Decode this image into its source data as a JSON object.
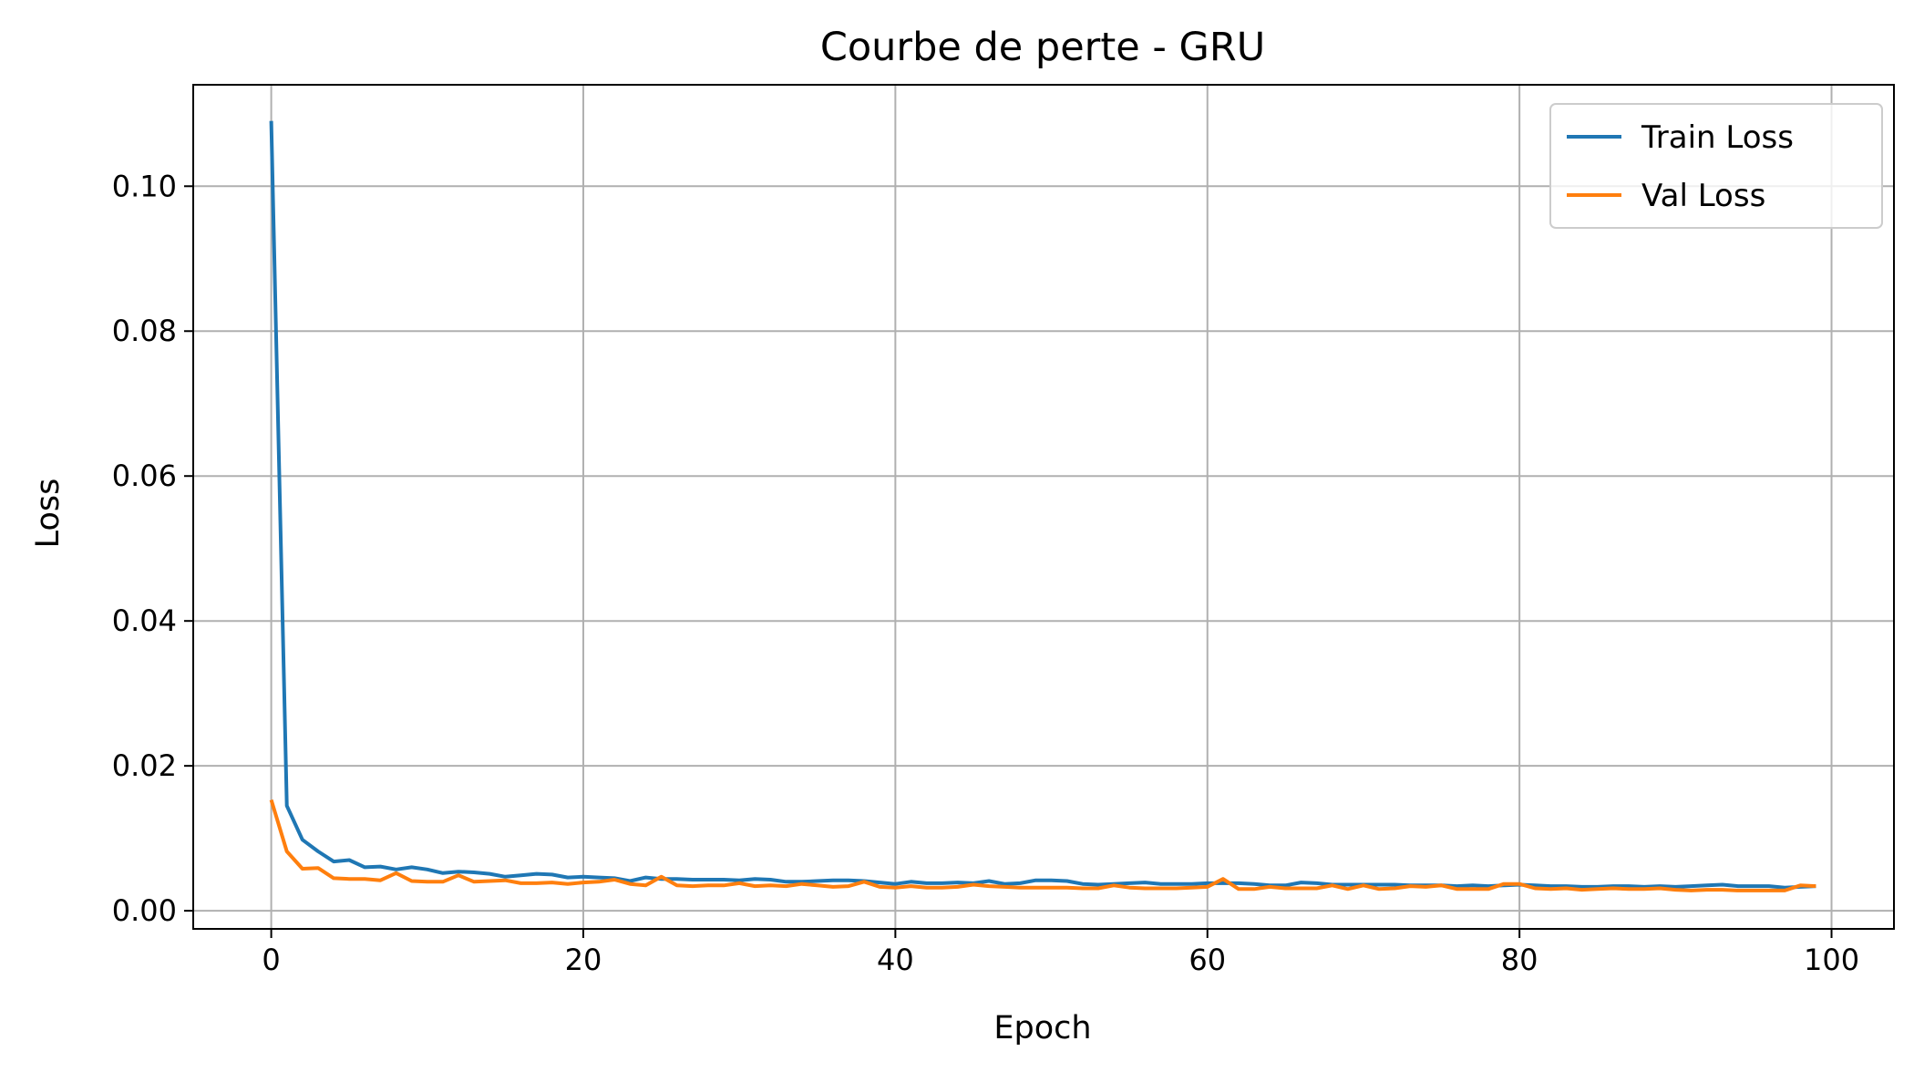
{
  "chart_data": {
    "type": "line",
    "title": "Courbe de perte - GRU",
    "xlabel": "Epoch",
    "ylabel": "Loss",
    "xlim": [
      -5,
      104
    ],
    "ylim": [
      -0.0025,
      0.114
    ],
    "xticks": [
      0,
      20,
      40,
      60,
      80,
      100
    ],
    "yticks": [
      0.0,
      0.02,
      0.04,
      0.06,
      0.08,
      0.1
    ],
    "xtick_labels": [
      "0",
      "20",
      "40",
      "60",
      "80",
      "100"
    ],
    "ytick_labels": [
      "0.00",
      "0.02",
      "0.04",
      "0.06",
      "0.08",
      "0.10"
    ],
    "grid": true,
    "legend_position": "top-right",
    "series": [
      {
        "name": "Train Loss",
        "color": "#1f77b4",
        "values": [
          0.109,
          0.0145,
          0.0098,
          0.0082,
          0.0068,
          0.007,
          0.006,
          0.0061,
          0.0057,
          0.006,
          0.0057,
          0.0052,
          0.0054,
          0.0053,
          0.0051,
          0.0047,
          0.0049,
          0.0051,
          0.005,
          0.0046,
          0.0047,
          0.0046,
          0.0045,
          0.0041,
          0.0046,
          0.0044,
          0.0044,
          0.0043,
          0.0043,
          0.0043,
          0.0042,
          0.0044,
          0.0043,
          0.004,
          0.004,
          0.0041,
          0.0042,
          0.0042,
          0.0041,
          0.0039,
          0.0037,
          0.004,
          0.0038,
          0.0038,
          0.0039,
          0.0038,
          0.0041,
          0.0037,
          0.0038,
          0.0042,
          0.0042,
          0.0041,
          0.0037,
          0.0036,
          0.0037,
          0.0038,
          0.0039,
          0.0037,
          0.0037,
          0.0037,
          0.0038,
          0.0038,
          0.0038,
          0.0037,
          0.0035,
          0.0035,
          0.0039,
          0.0038,
          0.0036,
          0.0036,
          0.0036,
          0.0036,
          0.0036,
          0.0035,
          0.0035,
          0.0035,
          0.0034,
          0.0035,
          0.0034,
          0.0035,
          0.0036,
          0.0035,
          0.0034,
          0.0034,
          0.0033,
          0.0033,
          0.0034,
          0.0034,
          0.0033,
          0.0034,
          0.0033,
          0.0034,
          0.0035,
          0.0036,
          0.0034,
          0.0034,
          0.0034,
          0.0032,
          0.0033,
          0.0034
        ]
      },
      {
        "name": "Val Loss",
        "color": "#ff7f0e",
        "values": [
          0.0153,
          0.0082,
          0.0058,
          0.0059,
          0.0045,
          0.0044,
          0.0044,
          0.0042,
          0.0052,
          0.0041,
          0.004,
          0.004,
          0.0049,
          0.004,
          0.0041,
          0.0042,
          0.0038,
          0.0038,
          0.0039,
          0.0037,
          0.0039,
          0.004,
          0.0043,
          0.0037,
          0.0035,
          0.0047,
          0.0035,
          0.0034,
          0.0035,
          0.0035,
          0.0038,
          0.0034,
          0.0035,
          0.0034,
          0.0037,
          0.0035,
          0.0033,
          0.0034,
          0.004,
          0.0033,
          0.0032,
          0.0034,
          0.0032,
          0.0032,
          0.0033,
          0.0036,
          0.0034,
          0.0033,
          0.0032,
          0.0032,
          0.0032,
          0.0032,
          0.0031,
          0.0031,
          0.0035,
          0.0032,
          0.0031,
          0.0031,
          0.0031,
          0.0032,
          0.0033,
          0.0044,
          0.003,
          0.003,
          0.0033,
          0.0031,
          0.0031,
          0.0031,
          0.0035,
          0.003,
          0.0035,
          0.003,
          0.0031,
          0.0034,
          0.0033,
          0.0035,
          0.003,
          0.003,
          0.003,
          0.0037,
          0.0037,
          0.0031,
          0.003,
          0.0031,
          0.0029,
          0.003,
          0.0031,
          0.003,
          0.003,
          0.0031,
          0.0029,
          0.0028,
          0.0029,
          0.0029,
          0.0028,
          0.0028,
          0.0028,
          0.0028,
          0.0035,
          0.0034
        ]
      }
    ]
  }
}
